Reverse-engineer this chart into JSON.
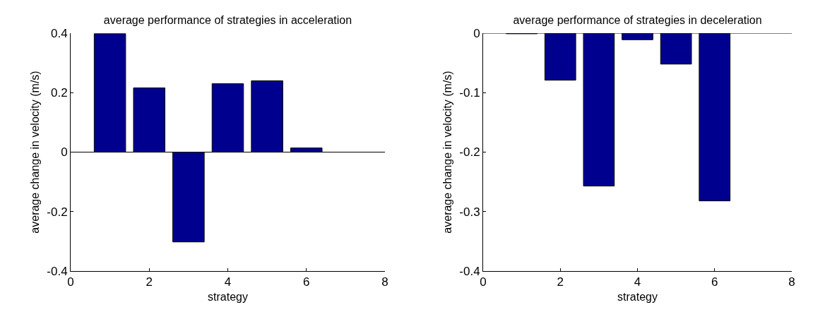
{
  "chart_data": [
    {
      "type": "bar",
      "title": "average performance of strategies in acceleration",
      "xlabel": "strategy",
      "ylabel": "average change in velocity (m/s)",
      "x": [
        1,
        2,
        3,
        4,
        5,
        6
      ],
      "series": [
        {
          "color": "#00008f",
          "values": [
            0.398,
            0.216,
            -0.302,
            0.23,
            0.24,
            0.014
          ]
        }
      ],
      "xlim": [
        0,
        8
      ],
      "xticks": [
        0,
        2,
        4,
        6,
        8
      ],
      "ylim": [
        -0.4,
        0.4
      ],
      "yticks": [
        -0.4,
        -0.2,
        0,
        0.2,
        0.4
      ],
      "ref_lines": [
        {
          "axis": "y",
          "value": 0
        }
      ]
    },
    {
      "type": "bar",
      "title": "average performance of strategies in deceleration",
      "xlabel": "strategy",
      "ylabel": "average change in velocity (m/s)",
      "x": [
        1,
        2,
        3,
        4,
        5,
        6
      ],
      "series": [
        {
          "color": "#00008f",
          "values": [
            -0.001,
            -0.079,
            -0.257,
            -0.011,
            -0.052,
            -0.282
          ]
        }
      ],
      "xlim": [
        0,
        8
      ],
      "xticks": [
        0,
        2,
        4,
        6,
        8
      ],
      "ylim": [
        -0.4,
        0
      ],
      "yticks": [
        -0.4,
        -0.3,
        -0.2,
        -0.1,
        0
      ],
      "ref_lines": [
        {
          "axis": "y",
          "value": 0
        }
      ]
    }
  ]
}
